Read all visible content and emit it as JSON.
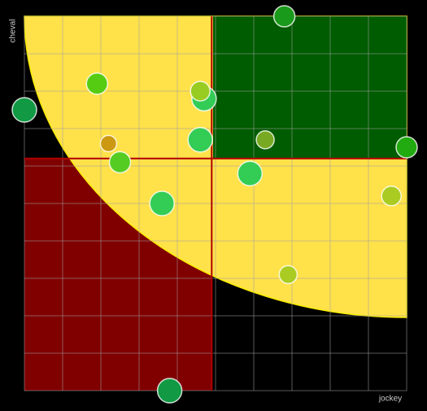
{
  "chart_data": {
    "type": "scatter",
    "x_label": "jockey",
    "y_label": "cheval",
    "xlim": [
      0,
      100
    ],
    "ylim": [
      0,
      100
    ],
    "xgrid": [
      0,
      10,
      20,
      30,
      40,
      50,
      60,
      70,
      80,
      90,
      100
    ],
    "ygrid": [
      0,
      10,
      20,
      30,
      40,
      50,
      60,
      70,
      80,
      90,
      100
    ],
    "x_reference": 49,
    "y_reference": 62,
    "reference_color": "#b00000",
    "series": [
      {
        "x": [
          68,
          19,
          0,
          47,
          46,
          46,
          63,
          100,
          22,
          25,
          59,
          96,
          36,
          69,
          38
        ],
        "values": [
          100,
          82,
          75,
          78,
          80,
          67,
          67,
          65,
          66,
          61,
          58,
          52,
          50,
          31,
          0
        ],
        "sizes": [
          13,
          13,
          15,
          15,
          12,
          15,
          11,
          13,
          10,
          13,
          15,
          12,
          15,
          11,
          15
        ],
        "colors": [
          "#1a9a1a",
          "#55cc11",
          "#119944",
          "#33cc55",
          "#99cc22",
          "#33cc55",
          "#77aa22",
          "#22aa11",
          "#cc9911",
          "#55cc22",
          "#33cc55",
          "#aacc22",
          "#33cc55",
          "#aacc22",
          "#119944"
        ]
      }
    ]
  }
}
